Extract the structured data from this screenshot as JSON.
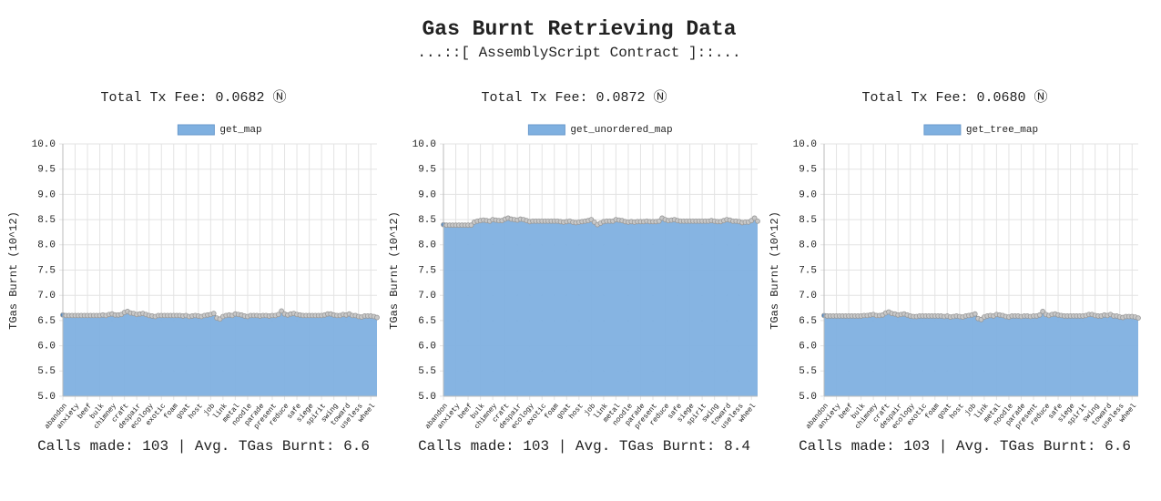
{
  "header": {
    "title": "Gas Burnt Retrieving Data",
    "subtitle": "...::[ AssemblyScript Contract ]::..."
  },
  "chart_data": [
    {
      "type": "line",
      "title": "Total Tx Fee: 0.0682 Ⓝ",
      "ylabel": "TGas Burnt (10^12)",
      "footer": "Calls made: 103 | Avg. TGas Burnt: 6.6",
      "categories": [
        "abandon",
        null,
        null,
        null,
        "anxiety",
        null,
        null,
        null,
        "beef",
        null,
        null,
        null,
        "bulk",
        null,
        null,
        null,
        "chimney",
        null,
        null,
        null,
        "craft",
        null,
        null,
        null,
        "despair",
        null,
        null,
        null,
        "ecology",
        null,
        null,
        null,
        "exotic",
        null,
        null,
        null,
        "foam",
        null,
        null,
        null,
        "goat",
        null,
        null,
        null,
        "host",
        null,
        null,
        null,
        "job",
        null,
        null,
        null,
        "link",
        null,
        null,
        null,
        "metal",
        null,
        null,
        null,
        "noodle",
        null,
        null,
        null,
        "parade",
        null,
        null,
        null,
        "present",
        null,
        null,
        null,
        "reduce",
        null,
        null,
        null,
        "safe",
        null,
        null,
        null,
        "siege",
        null,
        null,
        null,
        "spirit",
        null,
        null,
        null,
        "swing",
        null,
        null,
        null,
        "toward",
        null,
        null,
        null,
        "useless",
        null,
        null,
        null,
        "wheel",
        null,
        null
      ],
      "series": [
        {
          "name": "get_map",
          "color": "#7fb0e0",
          "values": [
            6.61,
            6.6,
            6.6,
            6.6,
            6.6,
            6.6,
            6.6,
            6.6,
            6.6,
            6.6,
            6.6,
            6.6,
            6.6,
            6.61,
            6.6,
            6.62,
            6.63,
            6.61,
            6.61,
            6.62,
            6.66,
            6.68,
            6.65,
            6.64,
            6.62,
            6.63,
            6.64,
            6.62,
            6.6,
            6.59,
            6.58,
            6.6,
            6.6,
            6.6,
            6.6,
            6.6,
            6.6,
            6.6,
            6.6,
            6.59,
            6.6,
            6.58,
            6.59,
            6.6,
            6.59,
            6.58,
            6.6,
            6.61,
            6.62,
            6.64,
            6.55,
            6.53,
            6.58,
            6.6,
            6.61,
            6.6,
            6.63,
            6.62,
            6.61,
            6.59,
            6.58,
            6.6,
            6.6,
            6.6,
            6.59,
            6.6,
            6.6,
            6.59,
            6.6,
            6.6,
            6.62,
            6.69,
            6.63,
            6.61,
            6.63,
            6.64,
            6.62,
            6.61,
            6.6,
            6.6,
            6.6,
            6.6,
            6.6,
            6.6,
            6.6,
            6.61,
            6.63,
            6.63,
            6.61,
            6.6,
            6.6,
            6.62,
            6.61,
            6.63,
            6.6,
            6.6,
            6.58,
            6.57,
            6.59,
            6.59,
            6.59,
            6.58,
            6.56
          ]
        }
      ],
      "ylim": [
        5,
        10
      ],
      "yticks": [
        {
          "value": 5,
          "label": "5.0"
        },
        5.5,
        {
          "value": 6,
          "label": "6.0"
        },
        6.5,
        {
          "value": 7,
          "label": "7.0"
        },
        7.5,
        {
          "value": 8,
          "label": "8.0"
        },
        8.5,
        {
          "value": 9,
          "label": "9.0"
        },
        9.5,
        {
          "value": 10,
          "label": "10.0"
        }
      ],
      "grid": true
    },
    {
      "type": "line",
      "title": "Total Tx Fee: 0.0872 Ⓝ",
      "ylabel": "TGas Burnt (10^12)",
      "footer": "Calls made: 103 | Avg. TGas Burnt: 8.4",
      "categories": [
        "abandon",
        null,
        null,
        null,
        "anxiety",
        null,
        null,
        null,
        "beef",
        null,
        null,
        null,
        "bulk",
        null,
        null,
        null,
        "chimney",
        null,
        null,
        null,
        "craft",
        null,
        null,
        null,
        "despair",
        null,
        null,
        null,
        "ecology",
        null,
        null,
        null,
        "exotic",
        null,
        null,
        null,
        "foam",
        null,
        null,
        null,
        "goat",
        null,
        null,
        null,
        "host",
        null,
        null,
        null,
        "job",
        null,
        null,
        null,
        "link",
        null,
        null,
        null,
        "metal",
        null,
        null,
        null,
        "noodle",
        null,
        null,
        null,
        "parade",
        null,
        null,
        null,
        "present",
        null,
        null,
        null,
        "reduce",
        null,
        null,
        null,
        "safe",
        null,
        null,
        null,
        "siege",
        null,
        null,
        null,
        "spirit",
        null,
        null,
        null,
        "swing",
        null,
        null,
        null,
        "toward",
        null,
        null,
        null,
        "useless",
        null,
        null,
        null,
        "wheel",
        null,
        null
      ],
      "series": [
        {
          "name": "get_unordered_map",
          "color": "#7fb0e0",
          "values": [
            8.4,
            8.39,
            8.39,
            8.39,
            8.39,
            8.39,
            8.39,
            8.39,
            8.39,
            8.39,
            8.45,
            8.47,
            8.48,
            8.49,
            8.48,
            8.47,
            8.5,
            8.49,
            8.48,
            8.48,
            8.51,
            8.53,
            8.51,
            8.5,
            8.49,
            8.51,
            8.5,
            8.48,
            8.46,
            8.47,
            8.47,
            8.47,
            8.47,
            8.47,
            8.47,
            8.47,
            8.47,
            8.47,
            8.46,
            8.45,
            8.46,
            8.47,
            8.45,
            8.44,
            8.45,
            8.46,
            8.47,
            8.48,
            8.5,
            8.45,
            8.4,
            8.43,
            8.46,
            8.47,
            8.47,
            8.47,
            8.5,
            8.49,
            8.48,
            8.46,
            8.45,
            8.46,
            8.45,
            8.46,
            8.46,
            8.46,
            8.47,
            8.46,
            8.46,
            8.46,
            8.47,
            8.53,
            8.5,
            8.48,
            8.49,
            8.5,
            8.48,
            8.47,
            8.47,
            8.47,
            8.47,
            8.47,
            8.47,
            8.47,
            8.47,
            8.47,
            8.47,
            8.48,
            8.47,
            8.46,
            8.46,
            8.48,
            8.5,
            8.49,
            8.47,
            8.47,
            8.46,
            8.44,
            8.45,
            8.45,
            8.48,
            8.53,
            8.47
          ]
        }
      ],
      "ylim": [
        5,
        10
      ],
      "yticks": [
        {
          "value": 5,
          "label": "5.0"
        },
        5.5,
        {
          "value": 6,
          "label": "6.0"
        },
        6.5,
        {
          "value": 7,
          "label": "7.0"
        },
        7.5,
        {
          "value": 8,
          "label": "8.0"
        },
        8.5,
        {
          "value": 9,
          "label": "9.0"
        },
        9.5,
        {
          "value": 10,
          "label": "10.0"
        }
      ],
      "grid": true
    },
    {
      "type": "line",
      "title": "Total Tx Fee: 0.0680 Ⓝ",
      "ylabel": "TGas Burnt (10^12)",
      "footer": "Calls made: 103 | Avg. TGas Burnt: 6.6",
      "categories": [
        "abandon",
        null,
        null,
        null,
        "anxiety",
        null,
        null,
        null,
        "beef",
        null,
        null,
        null,
        "bulk",
        null,
        null,
        null,
        "chimney",
        null,
        null,
        null,
        "craft",
        null,
        null,
        null,
        "despair",
        null,
        null,
        null,
        "ecology",
        null,
        null,
        null,
        "exotic",
        null,
        null,
        null,
        "foam",
        null,
        null,
        null,
        "goat",
        null,
        null,
        null,
        "host",
        null,
        null,
        null,
        "job",
        null,
        null,
        null,
        "link",
        null,
        null,
        null,
        "metal",
        null,
        null,
        null,
        "noodle",
        null,
        null,
        null,
        "parade",
        null,
        null,
        null,
        "present",
        null,
        null,
        null,
        "reduce",
        null,
        null,
        null,
        "safe",
        null,
        null,
        null,
        "siege",
        null,
        null,
        null,
        "spirit",
        null,
        null,
        null,
        "swing",
        null,
        null,
        null,
        "toward",
        null,
        null,
        null,
        "useless",
        null,
        null,
        null,
        "wheel",
        null,
        null
      ],
      "series": [
        {
          "name": "get_tree_map",
          "color": "#7fb0e0",
          "values": [
            6.6,
            6.59,
            6.59,
            6.59,
            6.59,
            6.59,
            6.59,
            6.59,
            6.59,
            6.59,
            6.59,
            6.59,
            6.59,
            6.6,
            6.6,
            6.61,
            6.62,
            6.6,
            6.6,
            6.61,
            6.65,
            6.67,
            6.64,
            6.63,
            6.61,
            6.62,
            6.63,
            6.61,
            6.59,
            6.58,
            6.58,
            6.59,
            6.59,
            6.59,
            6.59,
            6.59,
            6.59,
            6.59,
            6.59,
            6.58,
            6.59,
            6.57,
            6.58,
            6.59,
            6.58,
            6.57,
            6.59,
            6.6,
            6.61,
            6.63,
            6.54,
            6.52,
            6.57,
            6.59,
            6.6,
            6.59,
            6.62,
            6.61,
            6.6,
            6.58,
            6.57,
            6.59,
            6.59,
            6.59,
            6.58,
            6.59,
            6.59,
            6.58,
            6.59,
            6.59,
            6.61,
            6.68,
            6.62,
            6.6,
            6.62,
            6.63,
            6.61,
            6.6,
            6.59,
            6.59,
            6.59,
            6.59,
            6.59,
            6.59,
            6.59,
            6.6,
            6.62,
            6.62,
            6.6,
            6.59,
            6.59,
            6.61,
            6.6,
            6.62,
            6.59,
            6.59,
            6.57,
            6.56,
            6.58,
            6.58,
            6.58,
            6.57,
            6.55
          ]
        }
      ],
      "ylim": [
        5,
        10
      ],
      "yticks": [
        {
          "value": 5,
          "label": "5.0"
        },
        5.5,
        {
          "value": 6,
          "label": "6.0"
        },
        6.5,
        {
          "value": 7,
          "label": "7.0"
        },
        7.5,
        {
          "value": 8,
          "label": "8.0"
        },
        8.5,
        {
          "value": 9,
          "label": "9.0"
        },
        9.5,
        {
          "value": 10,
          "label": "10.0"
        }
      ],
      "grid": true
    }
  ]
}
